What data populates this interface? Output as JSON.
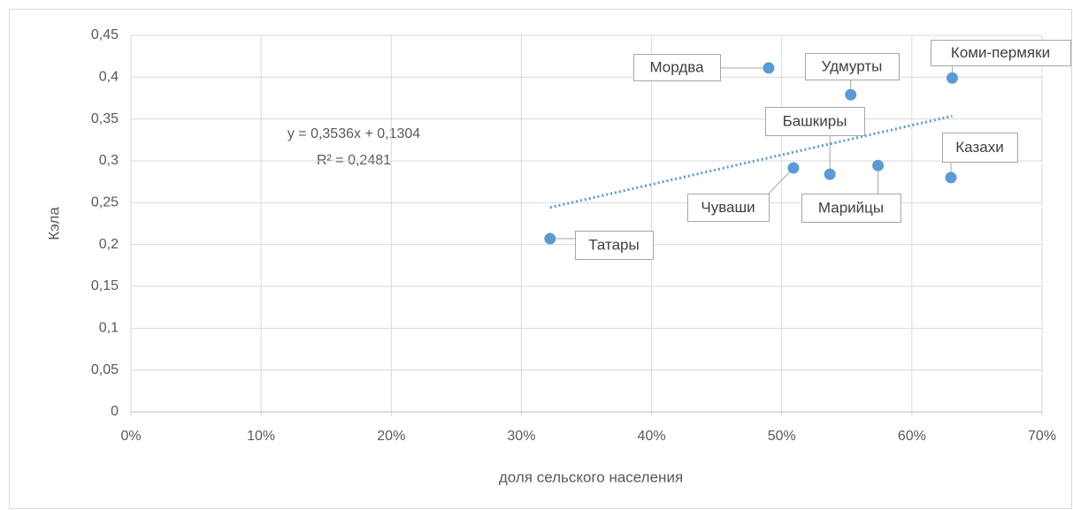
{
  "chart_data": {
    "type": "scatter",
    "xlabel": "доля сельского населения",
    "ylabel": "Кэла",
    "series": [
      {
        "color": "#5b9bd5",
        "x": [
          32.2,
          50.9,
          53.7,
          49.0,
          55.3,
          57.4,
          63.0,
          63.1
        ],
        "values": [
          0.207,
          0.2915,
          0.284,
          0.411,
          0.379,
          0.2945,
          0.28,
          0.399
        ],
        "labels": [
          "Татары",
          "Чуваши",
          "Башкиры",
          "Мордва",
          "Удмурты",
          "Марийцы",
          "Казахи",
          "Коми-пермяки"
        ]
      }
    ],
    "trendline": {
      "color": "#5b9bd5",
      "x": [
        32.2,
        63.1
      ],
      "values": [
        0.2443,
        0.3535
      ],
      "equation": "y = 0,3536x + 0,1304",
      "r2": "R² = 0,2481"
    },
    "xlim": [
      0,
      70
    ],
    "ylim": [
      0,
      0.45
    ],
    "xticks": [
      {
        "value": 0,
        "label": "0%"
      },
      {
        "value": 10,
        "label": "10%"
      },
      {
        "value": 20,
        "label": "20%"
      },
      {
        "value": 30,
        "label": "30%"
      },
      {
        "value": 40,
        "label": "40%"
      },
      {
        "value": 50,
        "label": "50%"
      },
      {
        "value": 60,
        "label": "60%"
      },
      {
        "value": 70,
        "label": "70%"
      }
    ],
    "yticks": [
      0,
      {
        "value": 0.05,
        "label": "0,05"
      },
      {
        "value": 0.1,
        "label": "0,1"
      },
      {
        "value": 0.15,
        "label": "0,15"
      },
      {
        "value": 0.2,
        "label": "0,2"
      },
      {
        "value": 0.25,
        "label": "0,25"
      },
      {
        "value": 0.3,
        "label": "0,3"
      },
      {
        "value": 0.35,
        "label": "0,35"
      },
      {
        "value": 0.4,
        "label": "0,4"
      },
      {
        "value": 0.45,
        "label": "0,45"
      }
    ],
    "grid": true
  }
}
